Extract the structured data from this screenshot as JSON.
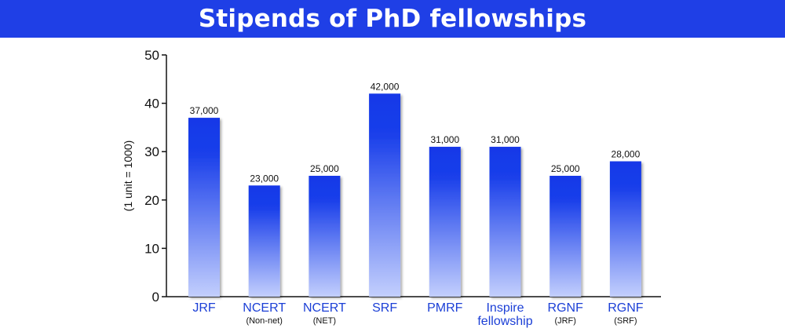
{
  "chart_data": {
    "type": "bar",
    "title": "Stipends of PhD fellowships",
    "ylabel": "(1 unit = 1000)",
    "xlabel": "",
    "ylim": [
      0,
      50
    ],
    "yticks": [
      0,
      10,
      20,
      30,
      40,
      50
    ],
    "grid": false,
    "legend": "none",
    "categories": [
      {
        "label": [
          "JRF"
        ],
        "sub": ""
      },
      {
        "label": [
          "NCERT"
        ],
        "sub": "(Non-net)"
      },
      {
        "label": [
          "NCERT"
        ],
        "sub": "(NET)"
      },
      {
        "label": [
          "SRF"
        ],
        "sub": ""
      },
      {
        "label": [
          "PMRF"
        ],
        "sub": ""
      },
      {
        "label": [
          "Inspire",
          "fellowship"
        ],
        "sub": ""
      },
      {
        "label": [
          "RGNF"
        ],
        "sub": "(JRF)"
      },
      {
        "label": [
          "RGNF"
        ],
        "sub": "(SRF)"
      }
    ],
    "values": [
      37,
      23,
      25,
      42,
      31,
      31,
      25,
      28
    ],
    "data_labels": [
      "37,000",
      "23,000",
      "25,000",
      "42,000",
      "31,000",
      "31,000",
      "25,000",
      "28,000"
    ],
    "colors": {
      "banner": "#1f3fe6",
      "bar_top": "#1438e8",
      "bar_bottom": "#c3cffd",
      "category_text": "#1b3fd6",
      "axis": "#111111"
    }
  }
}
